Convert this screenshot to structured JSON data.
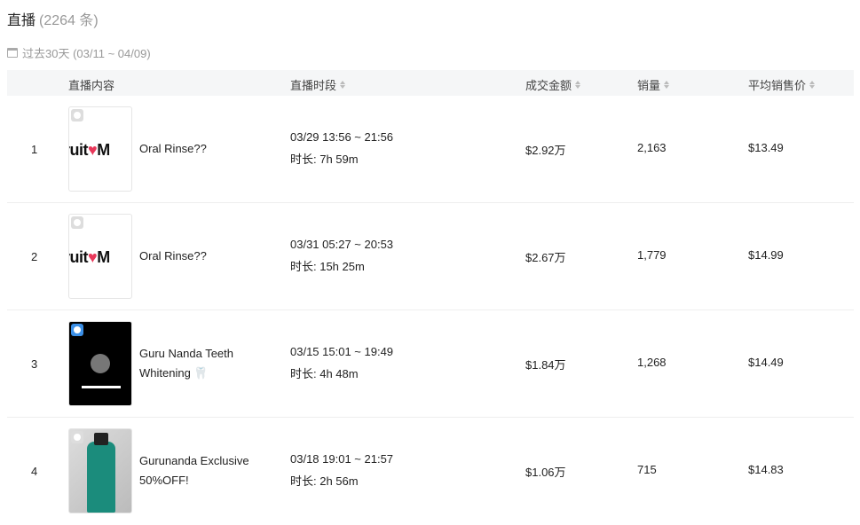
{
  "header": {
    "title": "直播",
    "count": "(2264 条)",
    "date_range": "过去30天 (03/11 ~ 04/09)"
  },
  "columns": [
    "直播内容",
    "直播时段",
    "成交金额",
    "销量",
    "平均销售价"
  ],
  "rows": [
    {
      "index": "1",
      "name": "Oral Rinse??",
      "thumb": "fruitVM logo",
      "time": "03/29 13:56 ~ 21:56",
      "duration": "时长: 7h 59m",
      "amount": "$2.92万",
      "sales": "2,163",
      "avg_price": "$13.49"
    },
    {
      "index": "2",
      "name": "Oral Rinse??",
      "thumb": "fruitVM logo",
      "time": "03/31 05:27 ~ 20:53",
      "duration": "时长: 15h 25m",
      "amount": "$2.67万",
      "sales": "1,779",
      "avg_price": "$14.99"
    },
    {
      "index": "3",
      "name": "Guru Nanda Teeth Whitening 🦷",
      "thumb": "dark video",
      "time": "03/15 15:01 ~ 19:49",
      "duration": "时长: 4h 48m",
      "amount": "$1.84万",
      "sales": "1,268",
      "avg_price": "$14.49"
    },
    {
      "index": "4",
      "name": "Gurunanda Exclusive 50%OFF!",
      "thumb": "bottle photo",
      "time": "03/18 19:01 ~ 21:57",
      "duration": "时长: 2h 56m",
      "amount": "$1.06万",
      "sales": "715",
      "avg_price": "$14.83"
    }
  ],
  "logo_text": "ruitVM"
}
